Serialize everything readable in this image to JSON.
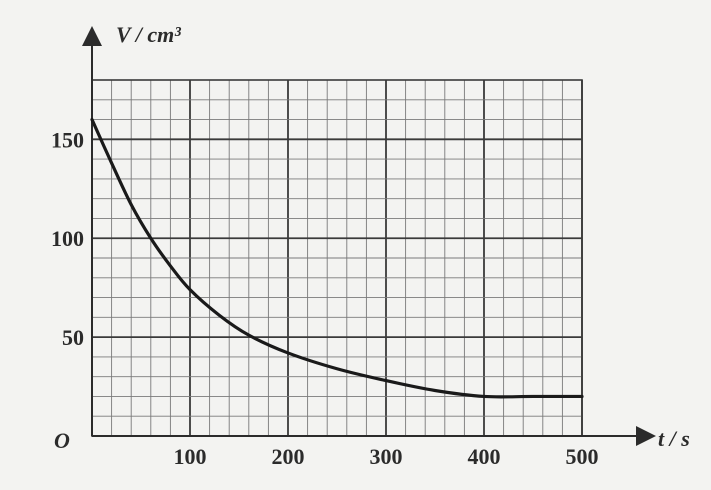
{
  "chart_data": {
    "type": "line",
    "title": "",
    "xlabel": "t / s",
    "ylabel": "V / cm³",
    "origin_label": "O",
    "xlim": [
      0,
      500
    ],
    "ylim": [
      0,
      180
    ],
    "x_ticks": [
      100,
      200,
      300,
      400,
      500
    ],
    "y_ticks": [
      50,
      100,
      150
    ],
    "grid": true,
    "series": [
      {
        "x": [
          0,
          20,
          40,
          60,
          80,
          100,
          130,
          160,
          200,
          250,
          300,
          350,
          400,
          450,
          500
        ],
        "y": [
          160,
          138,
          117,
          100,
          86,
          74,
          61,
          51,
          42,
          34,
          28,
          23,
          20,
          20,
          20
        ]
      }
    ]
  },
  "colors": {
    "curve": "#1a1a1a",
    "grid_major": "#3a3a3a",
    "grid_minor": "#7a7a7a",
    "axis": "#2b2b2b"
  }
}
